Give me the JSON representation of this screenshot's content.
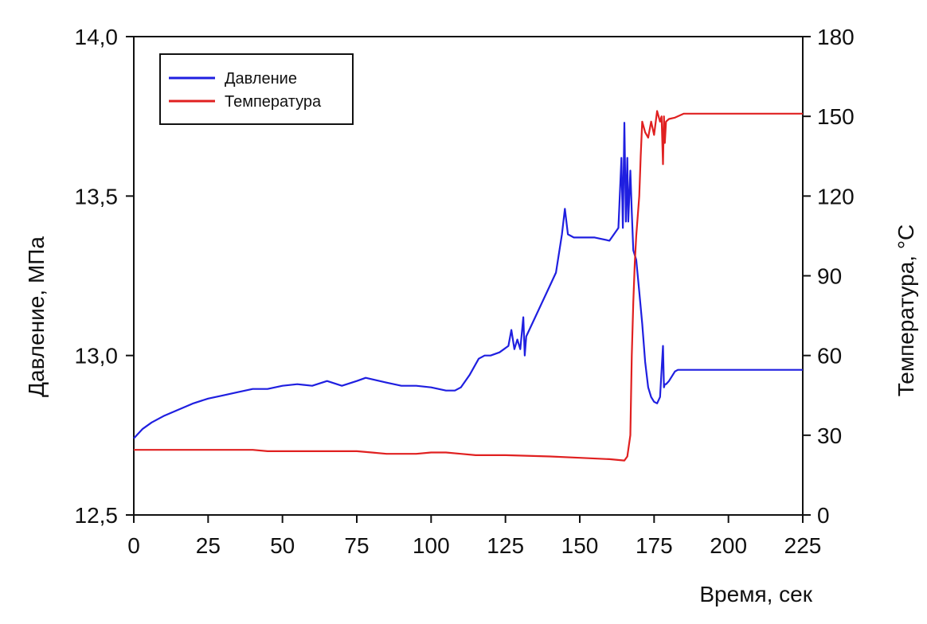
{
  "chart_data": {
    "type": "line",
    "title": "",
    "xlabel": "Время, сек",
    "ylabel_left": "Давление, МПа",
    "ylabel_right": "Температура, °C",
    "xlim": [
      0,
      225
    ],
    "ylim_left": [
      12.5,
      14.0
    ],
    "ylim_right": [
      0,
      180
    ],
    "x_ticks": [
      0,
      25,
      50,
      75,
      100,
      125,
      150,
      175,
      200,
      225
    ],
    "x_tick_labels": [
      "0",
      "25",
      "50",
      "75",
      "100",
      "125",
      "150",
      "175",
      "200",
      "225"
    ],
    "y_left_ticks": [
      12.5,
      13.0,
      13.5,
      14.0
    ],
    "y_left_tick_labels": [
      "12,5",
      "13,0",
      "13,5",
      "14,0"
    ],
    "y_right_ticks": [
      0,
      30,
      60,
      90,
      120,
      150,
      180
    ],
    "y_right_tick_labels": [
      "0",
      "30",
      "60",
      "90",
      "120",
      "150",
      "180"
    ],
    "grid": false,
    "legend_position": "top-left",
    "series": [
      {
        "name": "Давление",
        "axis": "left",
        "color": "#1f1fe0",
        "x": [
          0,
          3,
          6,
          10,
          15,
          20,
          25,
          30,
          35,
          40,
          45,
          50,
          55,
          60,
          65,
          70,
          75,
          78,
          85,
          90,
          95,
          100,
          105,
          108,
          110,
          113,
          116,
          118,
          120,
          123,
          126,
          127,
          128,
          129,
          130,
          131,
          131.5,
          132,
          135,
          140,
          142,
          144,
          145,
          146,
          148,
          150,
          155,
          160,
          163,
          164,
          164.5,
          165,
          165.5,
          166,
          166.3,
          167,
          167.5,
          168,
          169,
          170,
          171,
          172,
          173,
          174,
          175,
          176,
          177,
          178,
          178.3,
          178.6,
          179,
          180,
          182,
          183,
          225
        ],
        "values": [
          12.74,
          12.77,
          12.79,
          12.81,
          12.83,
          12.85,
          12.865,
          12.875,
          12.885,
          12.895,
          12.895,
          12.905,
          12.91,
          12.905,
          12.92,
          12.905,
          12.92,
          12.93,
          12.915,
          12.905,
          12.905,
          12.9,
          12.89,
          12.89,
          12.9,
          12.94,
          12.99,
          13.0,
          13.0,
          13.01,
          13.03,
          13.08,
          13.02,
          13.05,
          13.02,
          13.12,
          13.0,
          13.06,
          13.12,
          13.22,
          13.26,
          13.38,
          13.46,
          13.38,
          13.37,
          13.37,
          13.37,
          13.36,
          13.4,
          13.62,
          13.4,
          13.73,
          13.42,
          13.62,
          13.42,
          13.58,
          13.45,
          13.33,
          13.3,
          13.2,
          13.1,
          12.98,
          12.9,
          12.87,
          12.855,
          12.85,
          12.87,
          13.03,
          12.9,
          12.91,
          12.91,
          12.92,
          12.95,
          12.955,
          12.955
        ]
      },
      {
        "name": "Температура",
        "axis": "right",
        "color": "#e02020",
        "x": [
          0,
          30,
          40,
          45,
          75,
          80,
          85,
          95,
          100,
          105,
          110,
          115,
          125,
          140,
          150,
          160,
          165,
          166,
          167,
          167.5,
          168,
          168.5,
          169,
          170,
          170.5,
          171,
          172,
          173,
          174,
          175,
          176,
          177,
          177.5,
          178,
          178.3,
          178.6,
          179,
          180,
          182,
          185,
          225
        ],
        "values": [
          24.5,
          24.5,
          24.5,
          24,
          24,
          23.5,
          23,
          23,
          23.5,
          23.5,
          23,
          22.5,
          22.5,
          22,
          21.5,
          21,
          20.5,
          22,
          30,
          60,
          80,
          95,
          105,
          120,
          135,
          148,
          144,
          142,
          148,
          143,
          152,
          148,
          150,
          132,
          150,
          140,
          148,
          149,
          149.5,
          151,
          151
        ]
      }
    ]
  }
}
